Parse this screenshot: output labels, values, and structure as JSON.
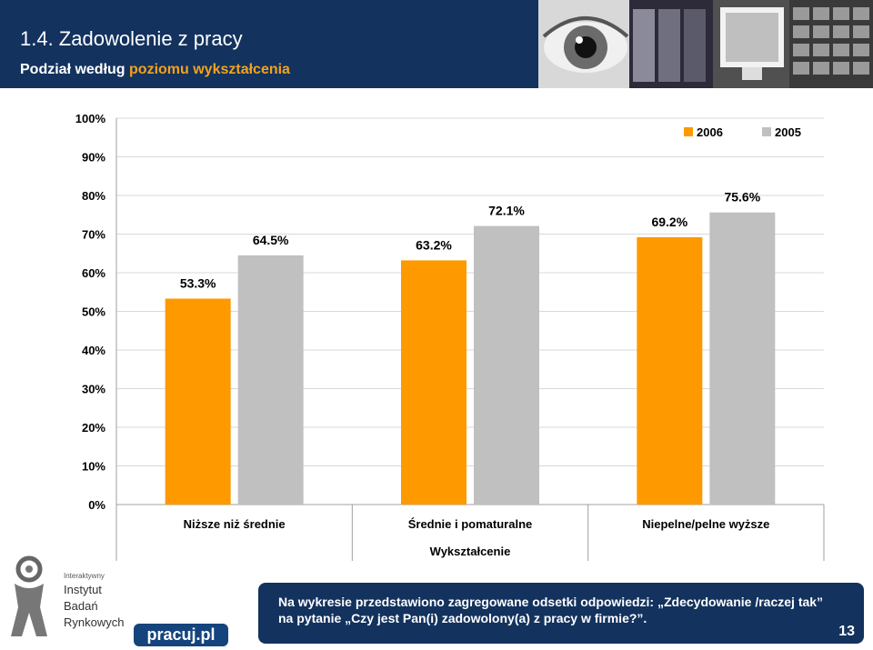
{
  "header": {
    "title": "1.4. Zadowolenie z pracy",
    "subtitle_prefix": "Podział według",
    "subtitle_accent": "poziomu wykształcenia",
    "background_color": "#13325e",
    "accent_color": "#f5a21a"
  },
  "chart_data": {
    "type": "bar",
    "categories": [
      "Niższe niż średnie",
      "Średnie i pomaturalne",
      "Niepelne/pelne wyższe"
    ],
    "series": [
      {
        "name": "2006",
        "values": [
          53.3,
          63.2,
          69.2
        ],
        "labels": [
          "53.3%",
          "63.2%",
          "69.2%"
        ],
        "color": "#ff9900"
      },
      {
        "name": "2005",
        "values": [
          64.5,
          72.1,
          75.6
        ],
        "labels": [
          "64.5%",
          "72.1%",
          "75.6%"
        ],
        "color": "#c0c0c0"
      }
    ],
    "xlabel": "Wykształcenie",
    "ylabel": "",
    "ylim": [
      0,
      100
    ],
    "yticks": [
      "0%",
      "10%",
      "20%",
      "30%",
      "40%",
      "50%",
      "60%",
      "70%",
      "80%",
      "90%",
      "100%"
    ],
    "grid": true,
    "legend_position": "top-right"
  },
  "footer": {
    "institute_small": "Interaktywny",
    "institute_line1": "Instytut",
    "institute_line2": "Badań",
    "institute_line3": "Rynkowych",
    "pracuj_logo": "pracuj.pl",
    "note": "Na wykresie przedstawiono zagregowane odsetki odpowiedzi: „Zdecydowanie /raczej tak” na pytanie „Czy jest Pan(i) zadowolony(a) z pracy w firmie?”.",
    "page_number": "13"
  }
}
